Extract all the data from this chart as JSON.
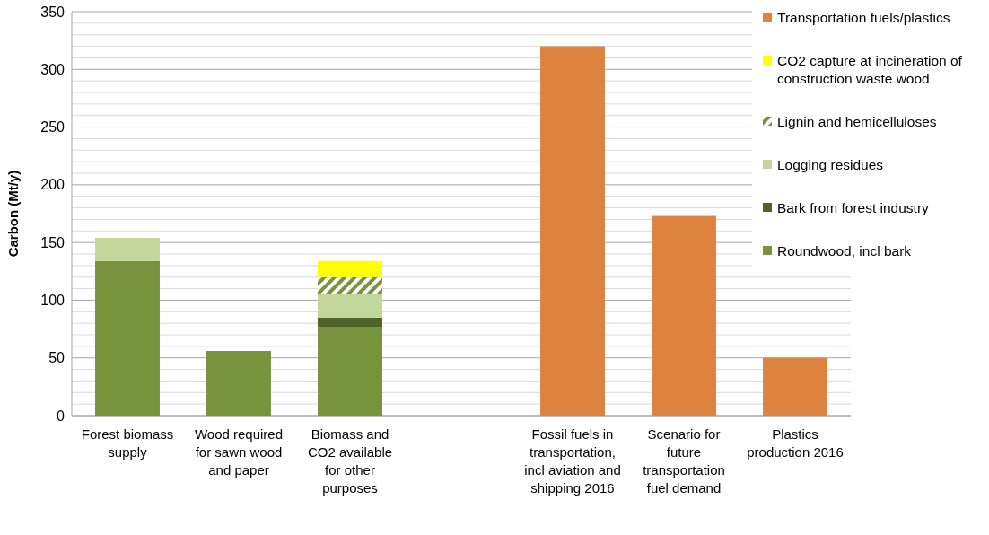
{
  "chart_data": {
    "type": "bar",
    "stacked": true,
    "ylabel": "Carbon (Mt/y)",
    "categories": [
      "Forest biomass supply",
      "Wood required for sawn wood and paper",
      "Biomass and CO2 available for other purposes",
      null,
      "Fossil fuels in transportation, incl aviation and shipping 2016",
      "Scenario for future transportation fuel demand",
      "Plastics production 2016"
    ],
    "series": [
      {
        "name": "Roundwood, incl bark",
        "color": "#77933c",
        "values": [
          134,
          56,
          77,
          null,
          null,
          null,
          null
        ]
      },
      {
        "name": "Bark from forest industry",
        "color": "#4f6228",
        "values": [
          null,
          null,
          8,
          null,
          null,
          null,
          null
        ]
      },
      {
        "name": "Logging residues",
        "color": "#c3d69b",
        "values": [
          20,
          null,
          20,
          null,
          null,
          null,
          null
        ]
      },
      {
        "name": "Lignin and hemicelluloses",
        "color": "#77933c",
        "values": [
          null,
          null,
          15,
          null,
          null,
          null,
          null
        ]
      },
      {
        "name": "CO2 capture at incineration of construction waste wood",
        "color": "#ffff00",
        "values": [
          null,
          null,
          14,
          null,
          null,
          null,
          null
        ]
      },
      {
        "name": "Transportation fuels/plastics",
        "color": "#dd833f",
        "values": [
          null,
          null,
          null,
          null,
          320,
          173,
          50
        ]
      }
    ],
    "ylim": [
      0,
      350
    ],
    "yticks": [
      0,
      {
        "value": 10,
        "label": null
      },
      {
        "value": 20,
        "label": null
      },
      {
        "value": 30,
        "label": null
      },
      {
        "value": 40,
        "label": null
      },
      50,
      {
        "value": 60,
        "label": null
      },
      {
        "value": 70,
        "label": null
      },
      {
        "value": 80,
        "label": null
      },
      {
        "value": 90,
        "label": null
      },
      100,
      {
        "value": 110,
        "label": null
      },
      {
        "value": 120,
        "label": null
      },
      {
        "value": 130,
        "label": null
      },
      {
        "value": 140,
        "label": null
      },
      150,
      {
        "value": 160,
        "label": null
      },
      {
        "value": 170,
        "label": null
      },
      {
        "value": 180,
        "label": null
      },
      {
        "value": 190,
        "label": null
      },
      200,
      {
        "value": 210,
        "label": null
      },
      {
        "value": 220,
        "label": null
      },
      {
        "value": 230,
        "label": null
      },
      {
        "value": 240,
        "label": null
      },
      250,
      {
        "value": 260,
        "label": null
      },
      {
        "value": 270,
        "label": null
      },
      {
        "value": 280,
        "label": null
      },
      {
        "value": 290,
        "label": null
      },
      300,
      {
        "value": 310,
        "label": null
      },
      {
        "value": 320,
        "label": null
      },
      {
        "value": 330,
        "label": null
      },
      {
        "value": 340,
        "label": null
      },
      350
    ],
    "grid": true,
    "legend": "top right"
  }
}
